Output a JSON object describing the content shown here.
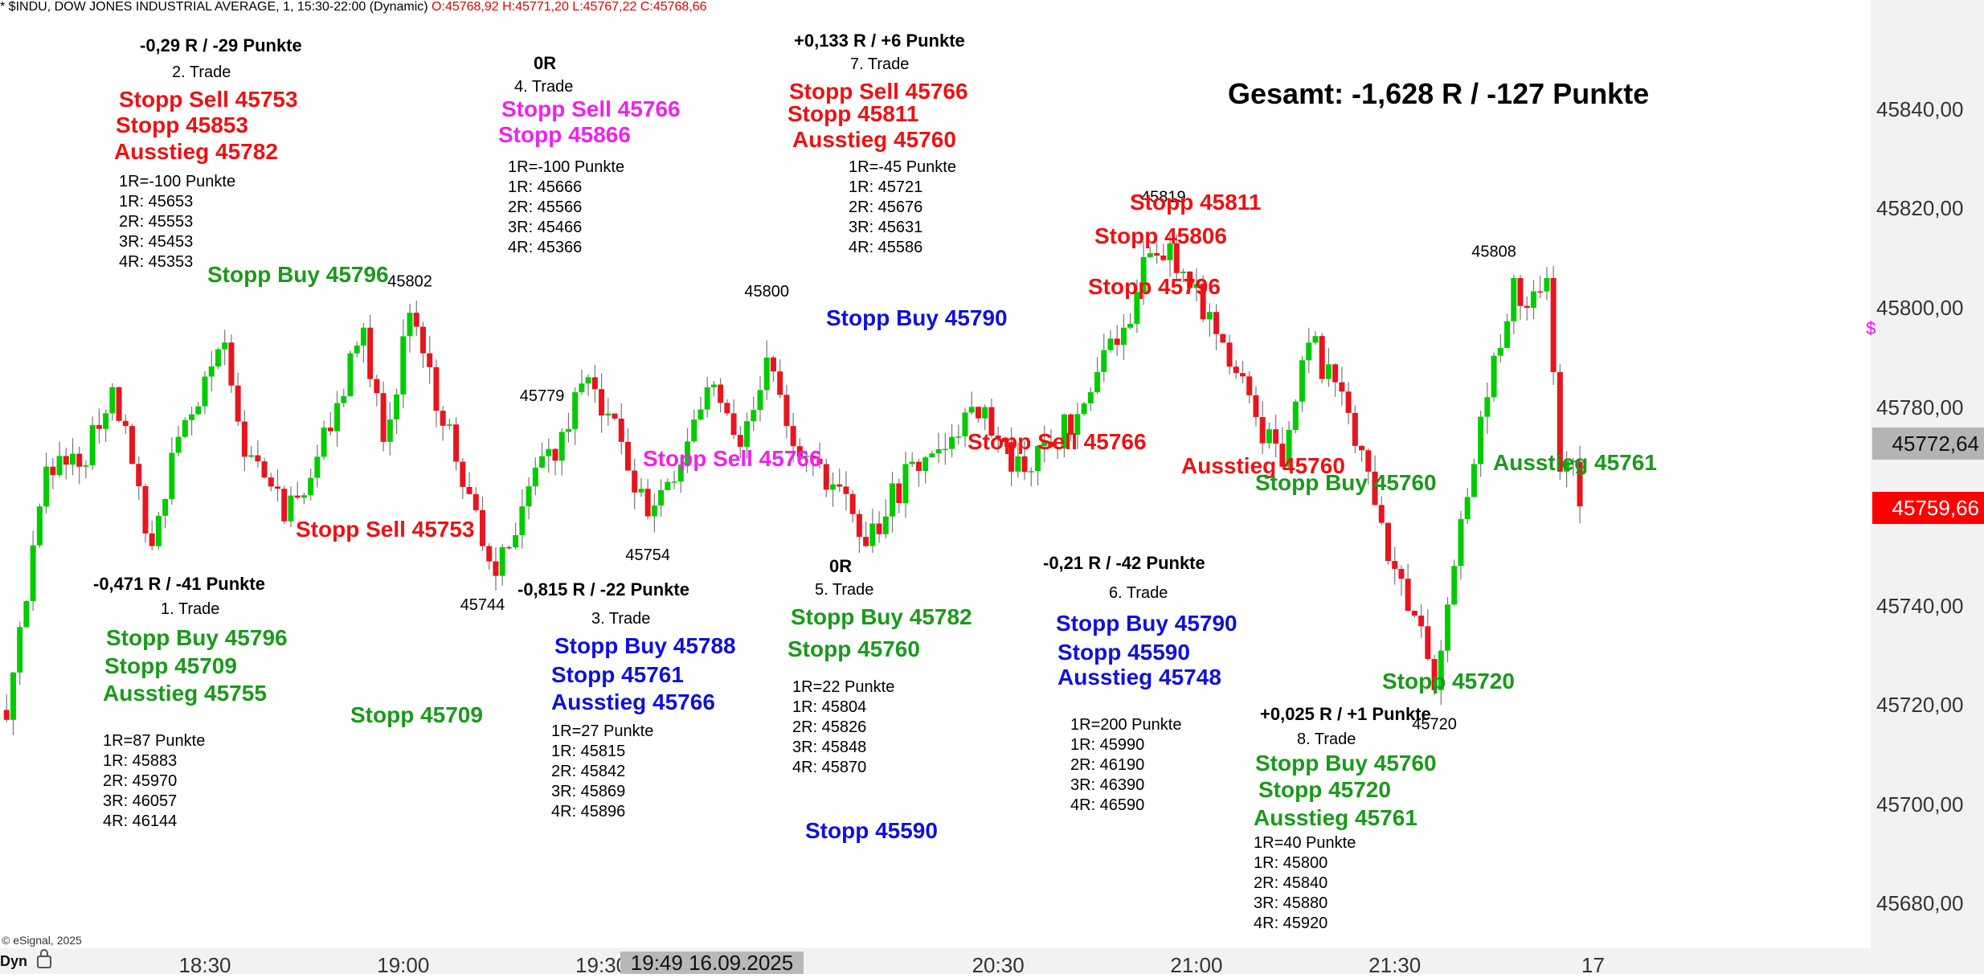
{
  "chart_header": {
    "symbol_text": "* $INDU, DOW JONES INDUSTRIAL AVERAGE, 1, 15:30-22:00 (Dynamic)",
    "ohlc_text": "O:45768,92 H:45771,20 L:45767,22 C:45768,66"
  },
  "gesamt": "Gesamt: -1,628 R / -127 Punkte",
  "copyright": "© eSignal, 2025",
  "dyn_label": "Dyn",
  "cursor_time": "19:49 16.09.2025",
  "magenta_mark": "$",
  "colors": {
    "up": "#00cc00",
    "down": "#e8141e",
    "green_text": "#1a9a1a",
    "red_text": "#ee1111",
    "blue_text": "#1010dd",
    "magenta_text": "#ee22ee",
    "last_price_bg": "#ff0000",
    "cursor_price_bg": "#b4b4b4"
  },
  "chart_data": {
    "type": "candlestick",
    "title": "* $INDU, DOW JONES INDUSTRIAL AVERAGE, 1, 15:30-22:00 (Dynamic)",
    "timeframe_minutes": 1,
    "y_ticks": [
      "45840,00",
      "45820,00",
      "45800,00",
      "45780,00",
      "45760,00",
      "45740,00",
      "45720,00",
      "45700,00",
      "45680,00"
    ],
    "y_tick_values": [
      45840,
      45820,
      45800,
      45780,
      45760,
      45740,
      45720,
      45700,
      45680
    ],
    "ylim": [
      45671,
      45862
    ],
    "x_ticks": [
      "18:30",
      "19:00",
      "19:30",
      "20:30",
      "21:00",
      "21:30",
      "17"
    ],
    "x_tick_values": [
      "18:30",
      "19:00",
      "19:30",
      "20:30",
      "21:00",
      "21:30",
      "22:00"
    ],
    "xlim": [
      "17:59",
      "22:42"
    ],
    "first_candle": "18:00",
    "price_labels": [
      {
        "text": "45772,64",
        "value": 45772.64,
        "type": "cursor"
      },
      {
        "text": "45759,66",
        "value": 45759.66,
        "type": "last"
      }
    ],
    "extrema_labels": [
      {
        "text": "45802",
        "time": "19:01",
        "value": 45802
      },
      {
        "text": "45779",
        "time": "19:21",
        "value": 45779
      },
      {
        "text": "45744",
        "time": "19:12",
        "value": 45744
      },
      {
        "text": "45754",
        "time": "19:37",
        "value": 45754
      },
      {
        "text": "45800",
        "time": "19:55",
        "value": 45800
      },
      {
        "text": "45819",
        "time": "20:55",
        "value": 45819
      },
      {
        "text": "45808",
        "time": "21:45",
        "value": 45808
      },
      {
        "text": "45720",
        "time": "21:36",
        "value": 45720
      }
    ],
    "anchors": [
      {
        "time": "18:00",
        "close": 45717
      },
      {
        "time": "18:06",
        "close": 45768
      },
      {
        "time": "18:11",
        "close": 45768
      },
      {
        "time": "18:16",
        "close": 45784
      },
      {
        "time": "18:22",
        "close": 45752
      },
      {
        "time": "18:26",
        "close": 45774
      },
      {
        "time": "18:33",
        "close": 45793
      },
      {
        "time": "18:36",
        "close": 45770
      },
      {
        "time": "18:40",
        "close": 45764
      },
      {
        "time": "18:42",
        "close": 45757
      },
      {
        "time": "18:47",
        "close": 45770
      },
      {
        "time": "18:54",
        "close": 45796
      },
      {
        "time": "18:57",
        "close": 45773
      },
      {
        "time": "19:01",
        "close": 45799
      },
      {
        "time": "19:08",
        "close": 45769
      },
      {
        "time": "19:12",
        "close": 45752
      },
      {
        "time": "19:14",
        "close": 45746
      },
      {
        "time": "19:18",
        "close": 45760
      },
      {
        "time": "19:24",
        "close": 45775
      },
      {
        "time": "19:28",
        "close": 45786
      },
      {
        "time": "19:33",
        "close": 45773
      },
      {
        "time": "19:37",
        "close": 45758
      },
      {
        "time": "19:41",
        "close": 45765
      },
      {
        "time": "19:46",
        "close": 45784
      },
      {
        "time": "19:51",
        "close": 45772
      },
      {
        "time": "19:55",
        "close": 45790
      },
      {
        "time": "20:00",
        "close": 45770
      },
      {
        "time": "20:06",
        "close": 45764
      },
      {
        "time": "20:10",
        "close": 45752
      },
      {
        "time": "20:17",
        "close": 45769
      },
      {
        "time": "20:23",
        "close": 45774
      },
      {
        "time": "20:28",
        "close": 45780
      },
      {
        "time": "20:32",
        "close": 45767
      },
      {
        "time": "20:38",
        "close": 45772
      },
      {
        "time": "20:44",
        "close": 45783
      },
      {
        "time": "20:49",
        "close": 45796
      },
      {
        "time": "20:53",
        "close": 45811
      },
      {
        "time": "20:56",
        "close": 45813
      },
      {
        "time": "20:59",
        "close": 45804
      },
      {
        "time": "21:04",
        "close": 45793
      },
      {
        "time": "21:09",
        "close": 45778
      },
      {
        "time": "21:13",
        "close": 45768
      },
      {
        "time": "21:17",
        "close": 45793
      },
      {
        "time": "21:21",
        "close": 45785
      },
      {
        "time": "21:26",
        "close": 45767
      },
      {
        "time": "21:29",
        "close": 45749
      },
      {
        "time": "21:33",
        "close": 45738
      },
      {
        "time": "21:36",
        "close": 45723
      },
      {
        "time": "21:39",
        "close": 45748
      },
      {
        "time": "21:44",
        "close": 45782
      },
      {
        "time": "21:48",
        "close": 45806
      },
      {
        "time": "21:50",
        "close": 45800
      },
      {
        "time": "21:53",
        "close": 45806
      },
      {
        "time": "21:55",
        "close": 45767
      },
      {
        "time": "21:57",
        "close": 45769
      },
      {
        "time": "21:58",
        "close": 45760
      }
    ]
  },
  "annotations": [
    {
      "text": "-0,29 R / -29 Punkte",
      "x": 174,
      "y": 46,
      "size": 22,
      "bold": true,
      "color": "#000000"
    },
    {
      "text": "2. Trade",
      "x": 214,
      "y": 80,
      "size": 20,
      "bold": false,
      "color": "#000000"
    },
    {
      "text": "Stopp Sell 45753",
      "x": 148,
      "y": 110,
      "size": 28,
      "bold": true,
      "color": "#ee1111"
    },
    {
      "text": "Stopp 45853",
      "x": 144,
      "y": 142,
      "size": 28,
      "bold": true,
      "color": "#ee1111"
    },
    {
      "text": "Ausstieg 45782",
      "x": 142,
      "y": 175,
      "size": 28,
      "bold": true,
      "color": "#ee1111"
    },
    {
      "text": "0R",
      "x": 664,
      "y": 68,
      "size": 22,
      "bold": true,
      "color": "#000000"
    },
    {
      "text": "4. Trade",
      "x": 640,
      "y": 98,
      "size": 20,
      "bold": false,
      "color": "#000000"
    },
    {
      "text": "Stopp Sell 45766",
      "x": 624,
      "y": 122,
      "size": 28,
      "bold": true,
      "color": "#ee22ee"
    },
    {
      "text": "Stopp 45866",
      "x": 620,
      "y": 154,
      "size": 28,
      "bold": true,
      "color": "#ee22ee"
    },
    {
      "text": "+0,133 R / +6 Punkte",
      "x": 988,
      "y": 40,
      "size": 22,
      "bold": true,
      "color": "#000000"
    },
    {
      "text": "7. Trade",
      "x": 1058,
      "y": 70,
      "size": 20,
      "bold": false,
      "color": "#000000"
    },
    {
      "text": "Stopp Sell 45766",
      "x": 982,
      "y": 100,
      "size": 28,
      "bold": true,
      "color": "#ee1111"
    },
    {
      "text": "Stopp 45811",
      "x": 980,
      "y": 128,
      "size": 28,
      "bold": true,
      "color": "#ee1111"
    },
    {
      "text": "Ausstieg 45760",
      "x": 986,
      "y": 160,
      "size": 28,
      "bold": true,
      "color": "#ee1111"
    },
    {
      "text": "Stopp Buy 45796",
      "x": 258,
      "y": 328,
      "size": 28,
      "bold": true,
      "color": "#1a9a1a"
    },
    {
      "text": "Stopp Buy 45790",
      "x": 1028,
      "y": 382,
      "size": 28,
      "bold": true,
      "color": "#1010dd"
    },
    {
      "text": "Stopp 45811",
      "x": 1406,
      "y": 238,
      "size": 28,
      "bold": true,
      "color": "#ee1111"
    },
    {
      "text": "Stopp 45806",
      "x": 1362,
      "y": 280,
      "size": 28,
      "bold": true,
      "color": "#ee1111"
    },
    {
      "text": "Stopp 45796",
      "x": 1354,
      "y": 343,
      "size": 28,
      "bold": true,
      "color": "#ee1111"
    },
    {
      "text": "Stopp Sell 45766",
      "x": 800,
      "y": 557,
      "size": 28,
      "bold": true,
      "color": "#ee22ee"
    },
    {
      "text": "Stopp Sell 45766",
      "x": 1204,
      "y": 536,
      "size": 28,
      "bold": true,
      "color": "#ee1111"
    },
    {
      "text": "Ausstieg 45760",
      "x": 1470,
      "y": 566,
      "size": 28,
      "bold": true,
      "color": "#ee1111"
    },
    {
      "text": "Stopp Buy 45760",
      "x": 1562,
      "y": 587,
      "size": 28,
      "bold": true,
      "color": "#1a9a1a"
    },
    {
      "text": "Ausstieg 45761",
      "x": 1858,
      "y": 562,
      "size": 28,
      "bold": true,
      "color": "#1a9a1a"
    },
    {
      "text": "Stopp Sell 45753",
      "x": 368,
      "y": 645,
      "size": 28,
      "bold": true,
      "color": "#ee1111"
    },
    {
      "text": "-0,471 R / -41 Punkte",
      "x": 116,
      "y": 716,
      "size": 22,
      "bold": true,
      "color": "#000000"
    },
    {
      "text": "1. Trade",
      "x": 200,
      "y": 748,
      "size": 20,
      "bold": false,
      "color": "#000000"
    },
    {
      "text": "Stopp Buy 45796",
      "x": 132,
      "y": 780,
      "size": 28,
      "bold": true,
      "color": "#1a9a1a"
    },
    {
      "text": "Stopp 45709",
      "x": 130,
      "y": 815,
      "size": 28,
      "bold": true,
      "color": "#1a9a1a"
    },
    {
      "text": "Ausstieg 45755",
      "x": 128,
      "y": 849,
      "size": 28,
      "bold": true,
      "color": "#1a9a1a"
    },
    {
      "text": "Stopp 45709",
      "x": 436,
      "y": 876,
      "size": 28,
      "bold": true,
      "color": "#1a9a1a"
    },
    {
      "text": "-0,815 R / -22 Punkte",
      "x": 644,
      "y": 723,
      "size": 22,
      "bold": true,
      "color": "#000000"
    },
    {
      "text": "3. Trade",
      "x": 736,
      "y": 760,
      "size": 20,
      "bold": false,
      "color": "#000000"
    },
    {
      "text": "Stopp Buy 45788",
      "x": 690,
      "y": 790,
      "size": 28,
      "bold": true,
      "color": "#1010dd"
    },
    {
      "text": "Stopp 45761",
      "x": 686,
      "y": 826,
      "size": 28,
      "bold": true,
      "color": "#1010dd"
    },
    {
      "text": "Ausstieg 45766",
      "x": 686,
      "y": 860,
      "size": 28,
      "bold": true,
      "color": "#1010dd"
    },
    {
      "text": "0R",
      "x": 1032,
      "y": 694,
      "size": 22,
      "bold": true,
      "color": "#000000"
    },
    {
      "text": "5. Trade",
      "x": 1014,
      "y": 724,
      "size": 20,
      "bold": false,
      "color": "#000000"
    },
    {
      "text": "Stopp Buy 45782",
      "x": 984,
      "y": 754,
      "size": 28,
      "bold": true,
      "color": "#1a9a1a"
    },
    {
      "text": "Stopp 45760",
      "x": 980,
      "y": 794,
      "size": 28,
      "bold": true,
      "color": "#1a9a1a"
    },
    {
      "text": "Stopp 45590",
      "x": 1002,
      "y": 1020,
      "size": 28,
      "bold": true,
      "color": "#1010dd"
    },
    {
      "text": "-0,21 R / -42 Punkte",
      "x": 1298,
      "y": 690,
      "size": 22,
      "bold": true,
      "color": "#000000"
    },
    {
      "text": "6. Trade",
      "x": 1380,
      "y": 728,
      "size": 20,
      "bold": false,
      "color": "#000000"
    },
    {
      "text": "Stopp Buy 45790",
      "x": 1314,
      "y": 762,
      "size": 28,
      "bold": true,
      "color": "#1010dd"
    },
    {
      "text": "Stopp 45590",
      "x": 1316,
      "y": 798,
      "size": 28,
      "bold": true,
      "color": "#1010dd"
    },
    {
      "text": "Ausstieg 45748",
      "x": 1316,
      "y": 829,
      "size": 28,
      "bold": true,
      "color": "#1010dd"
    },
    {
      "text": "+0,025 R / +1 Punkte",
      "x": 1568,
      "y": 878,
      "size": 22,
      "bold": true,
      "color": "#000000"
    },
    {
      "text": "8. Trade",
      "x": 1614,
      "y": 910,
      "size": 20,
      "bold": false,
      "color": "#000000"
    },
    {
      "text": "Stopp Buy 45760",
      "x": 1562,
      "y": 936,
      "size": 28,
      "bold": true,
      "color": "#1a9a1a"
    },
    {
      "text": "Stopp 45720",
      "x": 1566,
      "y": 969,
      "size": 28,
      "bold": true,
      "color": "#1a9a1a"
    },
    {
      "text": "Ausstieg 45761",
      "x": 1560,
      "y": 1004,
      "size": 28,
      "bold": true,
      "color": "#1a9a1a"
    },
    {
      "text": "Stopp 45720",
      "x": 1720,
      "y": 834,
      "size": 28,
      "bold": true,
      "color": "#1a9a1a"
    }
  ],
  "stacks": [
    {
      "x": 148,
      "y": 214,
      "lines": [
        "1R=-100 Punkte",
        "1R: 45653",
        "2R: 45553",
        "3R: 45453",
        "4R: 45353"
      ]
    },
    {
      "x": 632,
      "y": 196,
      "lines": [
        "1R=-100 Punkte",
        "1R: 45666",
        "2R: 45566",
        "3R: 45466",
        "4R: 45366"
      ]
    },
    {
      "x": 1056,
      "y": 196,
      "lines": [
        "1R=-45 Punkte",
        "1R: 45721",
        "2R: 45676",
        "3R: 45631",
        "4R: 45586"
      ]
    },
    {
      "x": 128,
      "y": 910,
      "lines": [
        "1R=87 Punkte",
        "1R: 45883",
        "2R: 45970",
        "3R: 46057",
        "4R: 46144"
      ]
    },
    {
      "x": 686,
      "y": 898,
      "lines": [
        "1R=27 Punkte",
        "1R: 45815",
        "2R: 45842",
        "3R: 45869",
        "4R: 45896"
      ]
    },
    {
      "x": 986,
      "y": 843,
      "lines": [
        "1R=22 Punkte",
        "1R: 45804",
        "2R: 45826",
        "3R: 45848",
        "4R: 45870"
      ]
    },
    {
      "x": 1332,
      "y": 890,
      "lines": [
        "1R=200 Punkte",
        "1R: 45990",
        "2R: 46190",
        "3R: 46390",
        "4R: 46590"
      ]
    },
    {
      "x": 1560,
      "y": 1037,
      "lines": [
        "1R=40 Punkte",
        "1R: 45800",
        "2R: 45840",
        "3R: 45880",
        "4R: 45920"
      ]
    }
  ]
}
